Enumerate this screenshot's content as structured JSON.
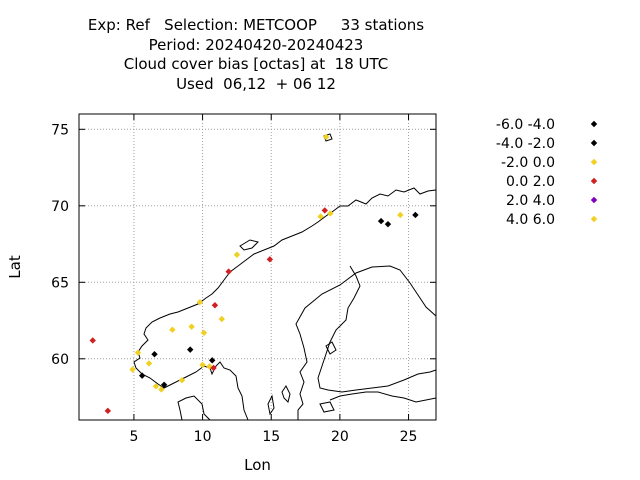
{
  "title": {
    "line1": "Exp: Ref   Selection: METCOOP     33 stations",
    "line2": "Period: 20240420-20240423",
    "line3": "Cloud cover bias [octas] at  18 UTC",
    "line4": "Used  06,12  + 06 12"
  },
  "chart_data": {
    "type": "scatter",
    "xlabel": "Lon",
    "ylabel": "Lat",
    "xlim": [
      1,
      27
    ],
    "ylim": [
      56,
      76
    ],
    "xticks": [
      5,
      10,
      15,
      20,
      25
    ],
    "yticks": [
      60,
      65,
      70,
      75
    ],
    "grid": true,
    "legend_position": "right",
    "legend": [
      {
        "label": "-6.0 -4.0",
        "color": "#000000"
      },
      {
        "label": "-4.0 -2.0",
        "color": "#000000"
      },
      {
        "label": "-2.0 0.0",
        "color": "#f0d020"
      },
      {
        "label": "0.0 2.0",
        "color": "#d02020"
      },
      {
        "label": "2.0 4.0",
        "color": "#8000c0"
      },
      {
        "label": "4.0 6.0",
        "color": "#f0d020"
      }
    ],
    "points": [
      {
        "lon": 19.0,
        "lat": 74.5,
        "color": "#f0d020"
      },
      {
        "lon": 18.9,
        "lat": 69.7,
        "color": "#d02020"
      },
      {
        "lon": 19.3,
        "lat": 69.5,
        "color": "#f0d020"
      },
      {
        "lon": 18.6,
        "lat": 69.3,
        "color": "#f0d020"
      },
      {
        "lon": 23.0,
        "lat": 69.0,
        "color": "#000000"
      },
      {
        "lon": 23.5,
        "lat": 68.8,
        "color": "#000000"
      },
      {
        "lon": 24.4,
        "lat": 69.4,
        "color": "#f0d020"
      },
      {
        "lon": 25.5,
        "lat": 69.4,
        "color": "#000000"
      },
      {
        "lon": 12.5,
        "lat": 66.8,
        "color": "#f0d020"
      },
      {
        "lon": 14.9,
        "lat": 66.5,
        "color": "#d02020"
      },
      {
        "lon": 11.9,
        "lat": 65.7,
        "color": "#d02020"
      },
      {
        "lon": 9.8,
        "lat": 63.7,
        "color": "#f0d020"
      },
      {
        "lon": 10.9,
        "lat": 63.5,
        "color": "#d02020"
      },
      {
        "lon": 11.4,
        "lat": 62.6,
        "color": "#f0d020"
      },
      {
        "lon": 9.2,
        "lat": 62.1,
        "color": "#f0d020"
      },
      {
        "lon": 7.8,
        "lat": 61.9,
        "color": "#f0d020"
      },
      {
        "lon": 10.1,
        "lat": 61.7,
        "color": "#f0d020"
      },
      {
        "lon": 2.0,
        "lat": 61.2,
        "color": "#d02020"
      },
      {
        "lon": 9.1,
        "lat": 60.6,
        "color": "#000000"
      },
      {
        "lon": 5.3,
        "lat": 60.4,
        "color": "#f0d020"
      },
      {
        "lon": 6.5,
        "lat": 60.3,
        "color": "#000000"
      },
      {
        "lon": 10.7,
        "lat": 59.9,
        "color": "#000000"
      },
      {
        "lon": 6.1,
        "lat": 59.7,
        "color": "#f0d020"
      },
      {
        "lon": 10.0,
        "lat": 59.6,
        "color": "#f0d020"
      },
      {
        "lon": 10.5,
        "lat": 59.5,
        "color": "#f0d020"
      },
      {
        "lon": 10.8,
        "lat": 59.4,
        "color": "#d02020"
      },
      {
        "lon": 4.9,
        "lat": 59.3,
        "color": "#f0d020"
      },
      {
        "lon": 5.6,
        "lat": 58.9,
        "color": "#000000"
      },
      {
        "lon": 8.5,
        "lat": 58.6,
        "color": "#f0d020"
      },
      {
        "lon": 7.2,
        "lat": 58.3,
        "color": "#000000"
      },
      {
        "lon": 6.6,
        "lat": 58.2,
        "color": "#f0d020"
      },
      {
        "lon": 7.0,
        "lat": 58.0,
        "color": "#f0d020"
      },
      {
        "lon": 3.1,
        "lat": 56.6,
        "color": "#d02020"
      }
    ]
  }
}
